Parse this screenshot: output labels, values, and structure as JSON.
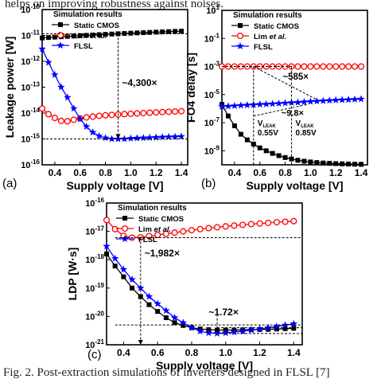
{
  "header_text": "helps on improving robustness against noises.",
  "caption": "Fig. 2. Post-extraction simulations of inverters designed in FLSL [7]",
  "chart_data": [
    {
      "type": "line",
      "panel_label": "(a)",
      "xlabel": "Supply voltage [V]",
      "ylabel": "Leakage power [W]",
      "yscale": "log",
      "xlim": [
        0.3,
        1.45
      ],
      "ylim": [
        1e-16,
        1e-10
      ],
      "x_ticks": [
        "0.4",
        "0.6",
        "0.8",
        "1.0",
        "1.2",
        "1.4"
      ],
      "y_ticks": [
        "10^-16",
        "10^-15",
        "10^-14",
        "10^-13",
        "10^-12",
        "10^-11",
        "10^-10"
      ],
      "legend": {
        "title": "Simulation results",
        "position": "top"
      },
      "x": [
        0.3,
        0.35,
        0.4,
        0.45,
        0.5,
        0.55,
        0.6,
        0.65,
        0.7,
        0.75,
        0.8,
        0.85,
        0.9,
        0.95,
        1.0,
        1.05,
        1.1,
        1.15,
        1.2,
        1.25,
        1.3,
        1.35,
        1.4
      ],
      "series": [
        {
          "name": "Static CMOS",
          "color": "#000000",
          "marker": "square",
          "values": [
            8e-12,
            8.3e-12,
            8.6e-12,
            8.9e-12,
            9.2e-12,
            9.5e-12,
            9.8e-12,
            1.01e-11,
            1.04e-11,
            1.07e-11,
            1.1e-11,
            1.13e-11,
            1.16e-11,
            1.19e-11,
            1.22e-11,
            1.25e-11,
            1.28e-11,
            1.31e-11,
            1.34e-11,
            1.37e-11,
            1.4e-11,
            1.43e-11,
            1.46e-11
          ]
        },
        {
          "name": "Lim et al.",
          "color": "#ff0000",
          "marker": "circle-open",
          "values": [
            1.5e-14,
            9e-15,
            6.5e-15,
            5e-15,
            4.8e-15,
            5.5e-15,
            6.2e-15,
            6.8e-15,
            7.3e-15,
            7.8e-15,
            8.2e-15,
            8.5e-15,
            8.8e-15,
            9.1e-15,
            9.4e-15,
            9.7e-15,
            1e-14,
            1.03e-14,
            1.06e-14,
            1.09e-14,
            1.12e-14,
            1.15e-14,
            1.18e-14
          ]
        },
        {
          "name": "FLSL",
          "color": "#0000ff",
          "marker": "star",
          "values": [
            3e-12,
            9e-13,
            3e-13,
            1e-13,
            4e-14,
            1.5e-14,
            6e-15,
            3e-15,
            1.8e-15,
            1.3e-15,
            1.1e-15,
            1e-15,
            1e-15,
            1e-15,
            1.05e-15,
            1.07e-15,
            1.1e-15,
            1.12e-15,
            1.15e-15,
            1.18e-15,
            1.2e-15,
            1.22e-15,
            1.25e-15
          ]
        }
      ],
      "annotations": [
        "~4,300×"
      ]
    },
    {
      "type": "line",
      "panel_label": "(b)",
      "xlabel": "Supply voltage [V]",
      "ylabel": "FO4 delay [s]",
      "yscale": "log",
      "xlim": [
        0.3,
        1.45
      ],
      "ylim": [
        1e-10,
        10
      ],
      "x_ticks": [
        "0.4",
        "0.6",
        "0.8",
        "1.0",
        "1.2",
        "1.4"
      ],
      "y_ticks": [
        "10^-9",
        "10^-7",
        "10^-5",
        "10^-3",
        "10^-1",
        "10^1"
      ],
      "legend": {
        "title": "Simulation results",
        "position": "top"
      },
      "x": [
        0.3,
        0.35,
        0.4,
        0.45,
        0.5,
        0.55,
        0.6,
        0.65,
        0.7,
        0.75,
        0.8,
        0.85,
        0.9,
        0.95,
        1.0,
        1.05,
        1.1,
        1.15,
        1.2,
        1.25,
        1.3,
        1.35,
        1.4
      ],
      "series": [
        {
          "name": "Static CMOS",
          "color": "#000000",
          "marker": "square",
          "values": [
            2e-06,
            3e-07,
            6e-08,
            1.5e-08,
            6e-09,
            3e-09,
            1.6e-09,
            1e-09,
            6.5e-10,
            4.5e-10,
            3.3e-10,
            2.6e-10,
            2.1e-10,
            1.8e-10,
            1.6e-10,
            1.45e-10,
            1.35e-10,
            1.28e-10,
            1.22e-10,
            1.18e-10,
            1.14e-10,
            1.11e-10,
            1.08e-10
          ]
        },
        {
          "name": "Lim et al.",
          "color": "#ff0000",
          "marker": "circle-open",
          "values": [
            0.001,
            0.001,
            0.001,
            0.001,
            0.001,
            0.001,
            0.001,
            0.001,
            0.001,
            0.001,
            0.001,
            0.001,
            0.001,
            0.001,
            0.001,
            0.001,
            0.001,
            0.001,
            0.001,
            0.001,
            0.001,
            0.001,
            0.001
          ]
        },
        {
          "name": "FLSL",
          "color": "#0000ff",
          "marker": "star",
          "values": [
            1.4e-06,
            1.5e-06,
            1.6e-06,
            1.7e-06,
            1.8e-06,
            1.9e-06,
            2e-06,
            2.1e-06,
            2.2e-06,
            2.35e-06,
            2.5e-06,
            2.65e-06,
            2.8e-06,
            3e-06,
            3.2e-06,
            3.4e-06,
            3.6e-06,
            3.8e-06,
            4e-06,
            4.2e-06,
            4.4e-06,
            4.6e-06,
            4.8e-06
          ]
        }
      ],
      "annotations": [
        "~585×",
        "~9.8×",
        "V",
        "LEAK",
        "0.55V",
        "V",
        "LEAK",
        "0.85V"
      ]
    },
    {
      "type": "line",
      "panel_label": "(c)",
      "xlabel": "Supply voltage [V]",
      "ylabel": "LDP [W·s]",
      "yscale": "log",
      "xlim": [
        0.3,
        1.45
      ],
      "ylim": [
        1e-21,
        1e-16
      ],
      "x_ticks": [
        "0.4",
        "0.6",
        "0.8",
        "1.0",
        "1.2",
        "1.4"
      ],
      "y_ticks": [
        "10^-21",
        "10^-20",
        "10^-19",
        "10^-18",
        "10^-17",
        "10^-16"
      ],
      "legend": {
        "title": "Simulation results",
        "position": "top"
      },
      "x": [
        0.3,
        0.35,
        0.4,
        0.45,
        0.5,
        0.55,
        0.6,
        0.65,
        0.7,
        0.75,
        0.8,
        0.85,
        0.9,
        0.95,
        1.0,
        1.05,
        1.1,
        1.15,
        1.2,
        1.25,
        1.3,
        1.35,
        1.4
      ],
      "series": [
        {
          "name": "Static CMOS",
          "color": "#000000",
          "marker": "square",
          "values": [
            1.6e-18,
            6e-19,
            2.5e-19,
            1e-19,
            5e-20,
            2.6e-20,
            1.5e-20,
            9e-21,
            6e-21,
            4.8e-21,
            4e-21,
            3.6e-21,
            3.4e-21,
            3.3e-21,
            3.3e-21,
            3.3e-21,
            3.35e-21,
            3.4e-21,
            3.45e-21,
            3.5e-21,
            3.6e-21,
            3.7e-21,
            3.8e-21
          ]
        },
        {
          "name": "Lim et al.",
          "color": "#ff0000",
          "marker": "circle-open",
          "values": [
            2.5e-17,
            1.2e-17,
            7e-18,
            6e-18,
            6.2e-18,
            6.8e-18,
            7.5e-18,
            8.2e-18,
            9e-18,
            1e-17,
            1.1e-17,
            1.2e-17,
            1.3e-17,
            1.4e-17,
            1.5e-17,
            1.6e-17,
            1.7e-17,
            1.8e-17,
            1.9e-17,
            2e-17,
            2.1e-17,
            2.2e-17,
            2.3e-17
          ]
        },
        {
          "name": "FLSL",
          "color": "#0000ff",
          "marker": "star",
          "values": [
            3e-18,
            1.1e-18,
            4.5e-19,
            2e-19,
            1e-19,
            5e-20,
            2.8e-20,
            1.6e-20,
            9e-21,
            6e-21,
            4e-21,
            3e-21,
            2.6e-21,
            2.5e-21,
            2.6e-21,
            2.8e-21,
            3e-21,
            3.3e-21,
            3.6e-21,
            4e-21,
            4.4e-21,
            4.9e-21,
            5.5e-21
          ]
        }
      ],
      "annotations": [
        "~1,982×",
        "~1.72×"
      ]
    }
  ]
}
